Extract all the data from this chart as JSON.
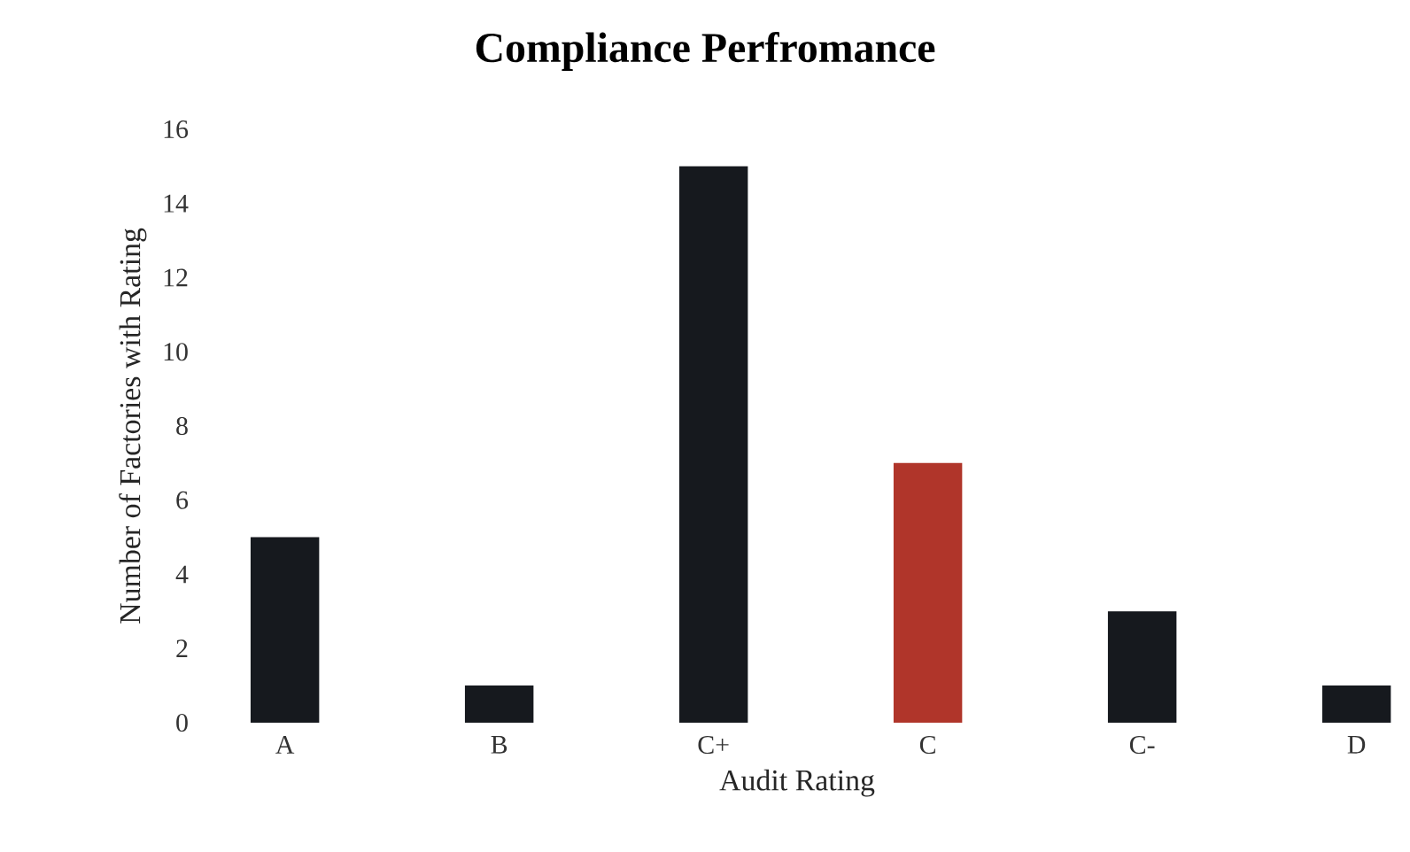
{
  "chart_data": {
    "type": "bar",
    "title": "Compliance Perfromance",
    "xlabel": "Audit Rating",
    "ylabel": "Number of Factories with Rating",
    "categories": [
      "A",
      "B",
      "C+",
      "C",
      "C-",
      "D"
    ],
    "values": [
      5,
      1,
      15,
      7,
      3,
      1
    ],
    "colors": [
      "#16191e",
      "#16191e",
      "#16191e",
      "#b0352a",
      "#16191e",
      "#16191e"
    ],
    "ylim": [
      0,
      16
    ],
    "yticks": [
      0,
      2,
      4,
      6,
      8,
      10,
      12,
      14,
      16
    ],
    "grid": false
  }
}
